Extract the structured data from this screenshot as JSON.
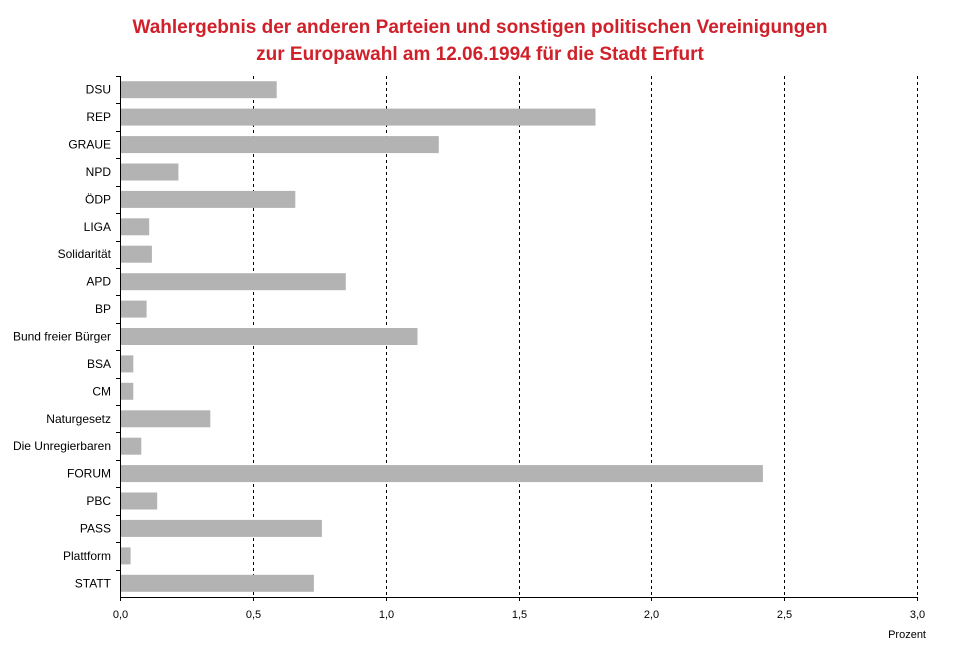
{
  "chart_data": {
    "type": "bar",
    "orientation": "horizontal",
    "title_line1": "Wahlergebnis der anderen Parteien und sonstigen politischen Vereinigungen",
    "title_line2": "zur Europawahl am 12.06.1994 für die Stadt Erfurt",
    "xlabel": "Prozent",
    "ylabel": "",
    "xlim": [
      0,
      3.0
    ],
    "xticks": [
      "0,0",
      "0,5",
      "1,0",
      "1,5",
      "2,0",
      "2,5",
      "3,0"
    ],
    "grid": "vertical dashed",
    "categories": [
      "DSU",
      "REP",
      "GRAUE",
      "NPD",
      "ÖDP",
      "LIGA",
      "Solidarität",
      "APD",
      "BP",
      "Bund freier Bürger",
      "BSA",
      "CM",
      "Naturgesetz",
      "Die Unregierbaren",
      "FORUM",
      "PBC",
      "PASS",
      "Plattform",
      "STATT"
    ],
    "values": [
      0.59,
      1.79,
      1.2,
      0.22,
      0.66,
      0.11,
      0.12,
      0.85,
      0.1,
      1.12,
      0.05,
      0.05,
      0.34,
      0.08,
      2.42,
      0.14,
      0.76,
      0.04,
      0.73
    ],
    "bar_color": "#b3b3b3",
    "title_color": "#d0202a"
  }
}
